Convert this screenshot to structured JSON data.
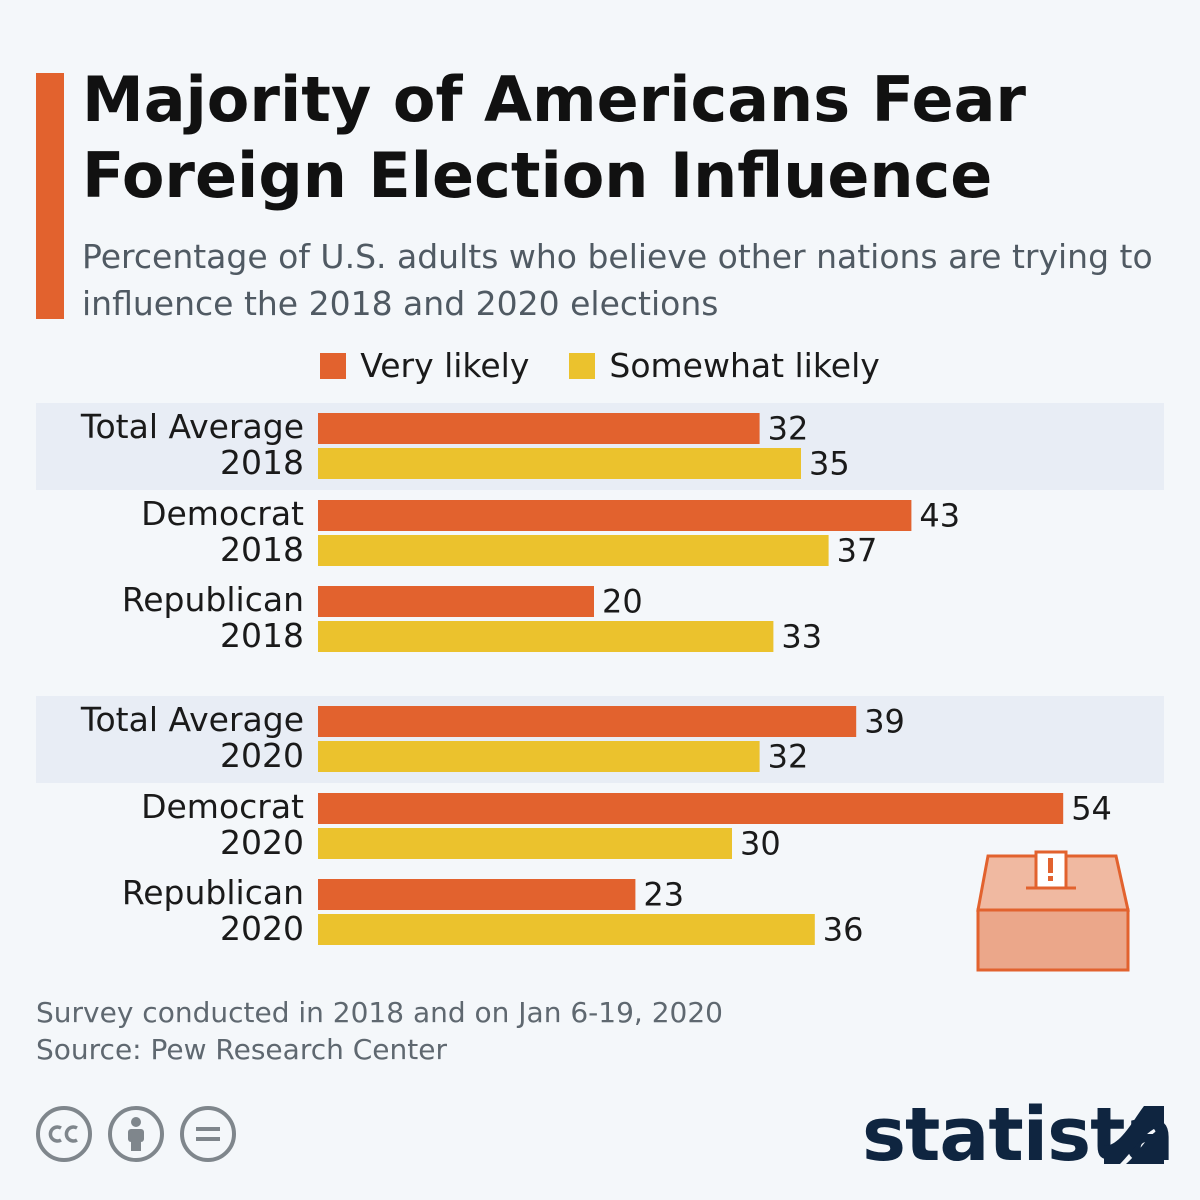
{
  "header": {
    "title": "Majority of Americans Fear Foreign Election Influence",
    "subtitle": "Percentage of U.S. adults who believe other nations are trying to influence the 2018 and 2020 elections"
  },
  "footer": {
    "line1": "Survey conducted in 2018 and on Jan 6-19, 2020",
    "line2": "Source: Pew Research Center"
  },
  "brand": {
    "name": "statista"
  },
  "icons": {
    "cc": "creative-commons-icon",
    "by": "attribution-icon",
    "nd": "no-derivatives-icon",
    "ballot": "ballot-box-icon",
    "logo": "statista-logo-icon"
  },
  "colors": {
    "very_likely": "#e2622e",
    "somewhat_likely": "#ebc22d",
    "accent": "#e2622e",
    "band": "#e8edf5",
    "brand": "#0f2540"
  },
  "chart_data": {
    "type": "bar",
    "orientation": "horizontal",
    "categories": [
      [
        "Total Average",
        "2018"
      ],
      [
        "Democrat",
        "2018"
      ],
      [
        "Republican",
        "2018"
      ],
      [
        "Total Average",
        "2020"
      ],
      [
        "Democrat",
        "2020"
      ],
      [
        "Republican",
        "2020"
      ]
    ],
    "series": [
      {
        "name": "Very likely",
        "values": [
          32,
          43,
          20,
          39,
          54,
          23
        ]
      },
      {
        "name": "Somewhat likely",
        "values": [
          35,
          37,
          33,
          32,
          30,
          36
        ]
      }
    ],
    "highlighted_rows": [
      0,
      3
    ],
    "legend_position": "top-center",
    "data_labels": true,
    "grid": false,
    "xlim": [
      0,
      60
    ]
  }
}
